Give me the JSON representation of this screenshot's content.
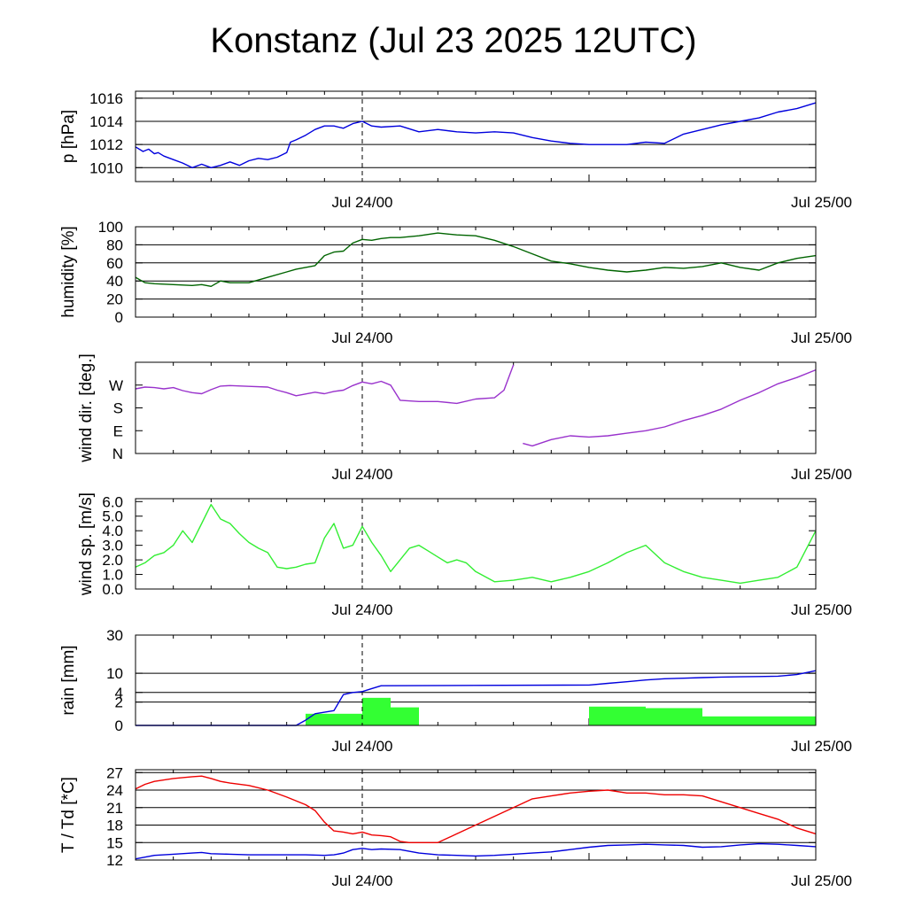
{
  "title": "Konstanz (Jul 23 2025 12UTC)",
  "time_axis": {
    "start_hour": -12,
    "end_hour": 24,
    "labels": [
      {
        "hour": 0,
        "text": "Jul 24/00"
      },
      {
        "hour": 24,
        "text": "Jul 25/00"
      }
    ]
  },
  "chart_data": [
    {
      "type": "line",
      "ylabel": "p [hPa]",
      "ylim": [
        1008.8,
        1016.6
      ],
      "yticks": [
        {
          "v": 1010,
          "t": "1010"
        },
        {
          "v": 1012,
          "t": "1012"
        },
        {
          "v": 1014,
          "t": "1014"
        },
        {
          "v": 1016,
          "t": "1016"
        }
      ],
      "grid": true,
      "series": [
        {
          "color": "#0000dd",
          "mode": "line",
          "x": [
            -12,
            -11.6,
            -11.3,
            -11,
            -10.8,
            -10.5,
            -10,
            -9.5,
            -9,
            -8.5,
            -8,
            -7.5,
            -7,
            -6.5,
            -6,
            -5.5,
            -5,
            -4.5,
            -4,
            -3.8,
            -3.5,
            -3,
            -2.5,
            -2,
            -1.5,
            -1,
            -0.5,
            0,
            0.5,
            1,
            2,
            3,
            4,
            5,
            6,
            7,
            8,
            9,
            10,
            11,
            12,
            13,
            14,
            15,
            16,
            17,
            18,
            19,
            20,
            21,
            22,
            23,
            24
          ],
          "y": [
            1011.8,
            1011.4,
            1011.6,
            1011.2,
            1011.3,
            1011,
            1010.7,
            1010.4,
            1010,
            1010.3,
            1010,
            1010.2,
            1010.5,
            1010.2,
            1010.6,
            1010.8,
            1010.7,
            1010.9,
            1011.3,
            1012.2,
            1012.4,
            1012.8,
            1013.3,
            1013.6,
            1013.6,
            1013.4,
            1013.8,
            1014,
            1013.6,
            1013.5,
            1013.6,
            1013.1,
            1013.3,
            1013.1,
            1013,
            1013.1,
            1013,
            1012.6,
            1012.3,
            1012.1,
            1012,
            1012,
            1012,
            1012.2,
            1012.1,
            1012.9,
            1013.3,
            1013.7,
            1014,
            1014.3,
            1014.8,
            1015.1,
            1015.6
          ]
        }
      ]
    },
    {
      "type": "line",
      "ylabel": "humidity [%]",
      "ylim": [
        0,
        100
      ],
      "yticks": [
        {
          "v": 0,
          "t": "0"
        },
        {
          "v": 20,
          "t": "20"
        },
        {
          "v": 40,
          "t": "40"
        },
        {
          "v": 60,
          "t": "60"
        },
        {
          "v": 80,
          "t": "80"
        },
        {
          "v": 100,
          "t": "100"
        }
      ],
      "grid": true,
      "series": [
        {
          "color": "#006400",
          "mode": "line",
          "x": [
            -12,
            -11.5,
            -11,
            -10,
            -9,
            -8.5,
            -8,
            -7.5,
            -7,
            -6,
            -5,
            -4,
            -3.5,
            -3,
            -2.5,
            -2,
            -1.5,
            -1,
            -0.5,
            0,
            0.5,
            1,
            1.5,
            2,
            3,
            4,
            5,
            6,
            7,
            8,
            9,
            10,
            11,
            12,
            13,
            14,
            15,
            16,
            17,
            18,
            19,
            20,
            21,
            22,
            23,
            24
          ],
          "y": [
            44,
            38,
            37,
            36,
            35,
            36,
            34,
            40,
            38,
            38,
            44,
            50,
            53,
            55,
            57,
            68,
            72,
            73,
            82,
            86,
            85,
            87,
            88,
            88,
            90,
            93,
            91,
            90,
            85,
            78,
            70,
            62,
            59,
            55,
            52,
            50,
            52,
            55,
            54,
            56,
            60,
            55,
            52,
            60,
            65,
            68
          ]
        }
      ]
    },
    {
      "type": "scatter",
      "ylabel": "wind dir. [deg.]",
      "ylim": [
        0,
        360
      ],
      "yticks": [
        {
          "v": 0,
          "t": "N"
        },
        {
          "v": 90,
          "t": "E"
        },
        {
          "v": 180,
          "t": "S"
        },
        {
          "v": 270,
          "t": "W"
        }
      ],
      "grid": false,
      "series": [
        {
          "color": "#9932cc",
          "mode": "line",
          "x": [
            -12,
            -11.5,
            -11,
            -10.5,
            -10,
            -9.5,
            -9,
            -8.5,
            -8,
            -7.5,
            -7,
            -6,
            -5,
            -4.5,
            -4,
            -3.5,
            -3,
            -2.5,
            -2,
            -1.5,
            -1,
            -0.5,
            0,
            0.5,
            1,
            1.5,
            2,
            3,
            4,
            5,
            6,
            7,
            7.5,
            8
          ],
          "y": [
            255,
            262,
            260,
            255,
            260,
            248,
            240,
            236,
            252,
            266,
            268,
            265,
            262,
            250,
            240,
            228,
            235,
            242,
            236,
            245,
            250,
            268,
            282,
            275,
            285,
            270,
            210,
            205,
            205,
            198,
            215,
            220,
            250,
            350
          ]
        },
        {
          "color": "#9932cc",
          "mode": "line",
          "x": [
            8.5,
            9,
            10,
            11,
            12,
            13,
            14,
            15,
            16,
            17,
            18,
            19,
            20,
            21,
            22,
            23,
            24
          ],
          "y": [
            40,
            30,
            55,
            70,
            65,
            70,
            80,
            90,
            105,
            130,
            150,
            175,
            210,
            240,
            275,
            300,
            330
          ]
        }
      ]
    },
    {
      "type": "line",
      "ylabel": "wind sp. [m/s]",
      "ylim": [
        0,
        6.2
      ],
      "yticks": [
        {
          "v": 0,
          "t": "0.0"
        },
        {
          "v": 1,
          "t": "1.0"
        },
        {
          "v": 2,
          "t": "2.0"
        },
        {
          "v": 3,
          "t": "3.0"
        },
        {
          "v": 4,
          "t": "4.0"
        },
        {
          "v": 5,
          "t": "5.0"
        },
        {
          "v": 6,
          "t": "6.0"
        }
      ],
      "grid": false,
      "series": [
        {
          "color": "#33ee33",
          "mode": "line",
          "x": [
            -12,
            -11.5,
            -11,
            -10.5,
            -10,
            -9.5,
            -9,
            -8.5,
            -8,
            -7.5,
            -7,
            -6.5,
            -6,
            -5.5,
            -5,
            -4.5,
            -4,
            -3.5,
            -3,
            -2.5,
            -2,
            -1.5,
            -1,
            -0.5,
            0,
            0.5,
            1,
            1.5,
            2,
            2.5,
            3,
            3.5,
            4,
            4.5,
            5,
            5.5,
            6,
            7,
            8,
            9,
            10,
            11,
            12,
            13,
            14,
            15,
            16,
            17,
            18,
            19,
            20,
            21,
            22,
            23,
            24
          ],
          "y": [
            1.5,
            1.8,
            2.3,
            2.5,
            3,
            4,
            3.2,
            4.5,
            5.8,
            4.8,
            4.5,
            3.8,
            3.2,
            2.8,
            2.5,
            1.5,
            1.4,
            1.5,
            1.7,
            1.8,
            3.5,
            4.5,
            2.8,
            3,
            4.3,
            3.2,
            2.3,
            1.2,
            2,
            2.8,
            3,
            2.6,
            2.2,
            1.8,
            2,
            1.8,
            1.2,
            0.5,
            0.6,
            0.8,
            0.5,
            0.8,
            1.2,
            1.8,
            2.5,
            3,
            1.8,
            1.2,
            0.8,
            0.6,
            0.4,
            0.6,
            0.8,
            1.5,
            4.0
          ]
        }
      ]
    },
    {
      "type": "bar",
      "ylabel": "rain [mm]",
      "scale": "sqrt",
      "ylim": [
        0,
        30
      ],
      "yticks": [
        {
          "v": 0,
          "t": "0"
        },
        {
          "v": 2,
          "t": "2"
        },
        {
          "v": 4,
          "t": "4"
        },
        {
          "v": 10,
          "t": "10"
        },
        {
          "v": 30,
          "t": "30"
        }
      ],
      "grid": true,
      "bars": [
        {
          "x0": -3,
          "x1": 0,
          "value": 0.5
        },
        {
          "x0": 0,
          "x1": 1.5,
          "value": 2.8
        },
        {
          "x0": 1.5,
          "x1": 3,
          "value": 1.2
        },
        {
          "x0": 12,
          "x1": 15,
          "value": 1.3
        },
        {
          "x0": 15,
          "x1": 18,
          "value": 1.1
        },
        {
          "x0": 18,
          "x1": 24,
          "value": 0.3
        }
      ],
      "series": [
        {
          "color": "#0000dd",
          "mode": "line",
          "x": [
            -12,
            -3.5,
            -3,
            -2.5,
            -1.5,
            -1,
            -0.5,
            0,
            0.5,
            1,
            6,
            12,
            13,
            14,
            15,
            16,
            17,
            18,
            19,
            20,
            21,
            22,
            23,
            24
          ],
          "y": [
            0,
            0,
            0.1,
            0.5,
            0.8,
            3.5,
            4,
            4.2,
            5,
            5.8,
            5.9,
            6.0,
            6.5,
            7,
            7.6,
            8,
            8.2,
            8.4,
            8.6,
            8.7,
            8.8,
            8.9,
            9.5,
            11
          ]
        }
      ]
    },
    {
      "type": "line",
      "ylabel": "T / Td [*C]",
      "ylim": [
        12,
        27.5
      ],
      "yticks": [
        {
          "v": 12,
          "t": "12"
        },
        {
          "v": 15,
          "t": "15"
        },
        {
          "v": 18,
          "t": "18"
        },
        {
          "v": 21,
          "t": "21"
        },
        {
          "v": 24,
          "t": "24"
        },
        {
          "v": 27,
          "t": "27"
        }
      ],
      "grid": true,
      "series": [
        {
          "color": "#ee0000",
          "mode": "line",
          "x": [
            -12,
            -11.5,
            -11,
            -10,
            -9,
            -8.5,
            -8,
            -7.5,
            -7,
            -6,
            -5,
            -4,
            -3,
            -2.5,
            -2,
            -1.5,
            -1,
            -0.5,
            0,
            0.5,
            1,
            1.5,
            2,
            2.5,
            3,
            4,
            5,
            6,
            7,
            8,
            9,
            10,
            11,
            12,
            13,
            14,
            15,
            16,
            17,
            18,
            19,
            20,
            21,
            22,
            23,
            24
          ],
          "y": [
            24.2,
            25,
            25.5,
            26,
            26.3,
            26.4,
            26,
            25.5,
            25.2,
            24.8,
            24,
            22.8,
            21.5,
            20.5,
            18.5,
            17,
            16.8,
            16.5,
            16.8,
            16.3,
            16.2,
            16,
            15.2,
            15,
            15,
            15,
            16.5,
            18,
            19.5,
            21,
            22.5,
            23,
            23.5,
            23.8,
            24,
            23.5,
            23.5,
            23.2,
            23.2,
            23,
            22,
            21,
            20,
            19,
            17.5,
            16.5
          ]
        },
        {
          "color": "#0000dd",
          "mode": "line",
          "x": [
            -12,
            -11.5,
            -11,
            -10,
            -9,
            -8.5,
            -8,
            -7,
            -6,
            -5,
            -4,
            -3,
            -2,
            -1.5,
            -1,
            -0.5,
            0,
            0.5,
            1,
            2,
            3,
            4,
            5,
            6,
            7,
            8,
            9,
            10,
            11,
            12,
            13,
            14,
            15,
            16,
            17,
            18,
            19,
            20,
            21,
            22,
            23,
            24
          ],
          "y": [
            12.2,
            12.5,
            12.8,
            13,
            13.2,
            13.3,
            13.1,
            13,
            12.9,
            12.9,
            12.9,
            12.9,
            12.8,
            12.9,
            13.2,
            13.8,
            14,
            13.8,
            13.9,
            13.8,
            13.2,
            12.9,
            12.8,
            12.7,
            12.8,
            13,
            13.2,
            13.4,
            13.8,
            14.2,
            14.5,
            14.6,
            14.7,
            14.6,
            14.5,
            14.2,
            14.3,
            14.6,
            14.8,
            14.7,
            14.5,
            14.3
          ]
        }
      ]
    }
  ]
}
